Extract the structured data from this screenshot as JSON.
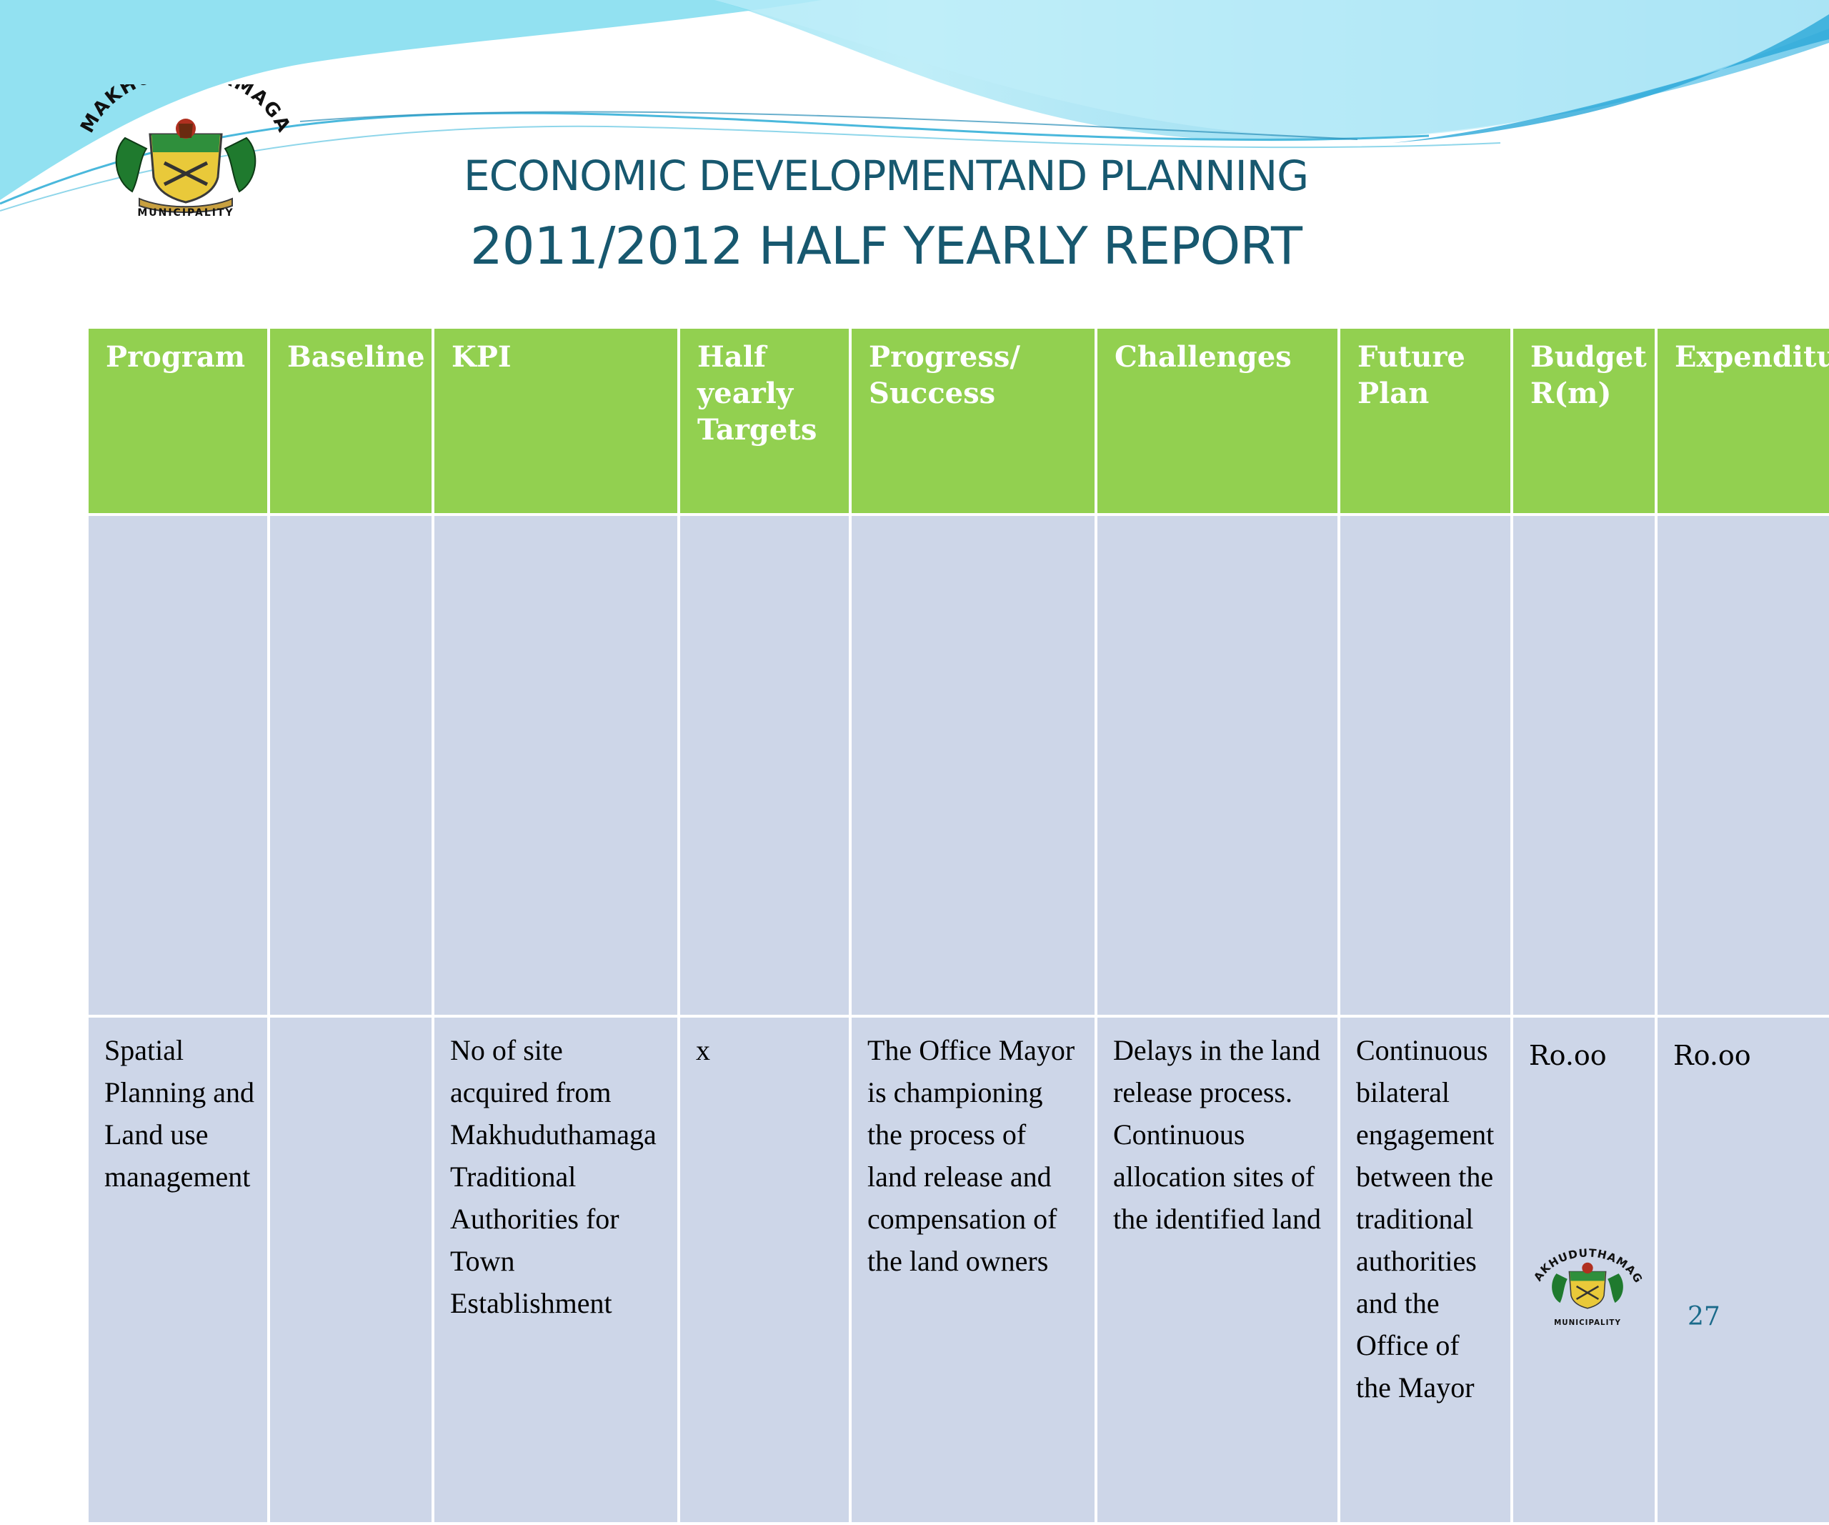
{
  "slide": {
    "title_line1": "ECONOMIC DEVELOPMENTAND PLANNING",
    "title_line2": "2011/2012 HALF YEARLY REPORT",
    "page_number": "27"
  },
  "logo": {
    "top_text": "MAKHUDUTHAMAGA",
    "bottom_text": "MUNICIPALITY"
  },
  "table": {
    "headers": [
      "Program",
      "Baseline",
      "KPI",
      "Half yearly Targets",
      "Progress/ Success",
      "Challenges",
      "Future Plan",
      "Budget R(m)",
      "Expenditure"
    ],
    "rows": [
      {
        "program": "Spatial Planning and Land use management",
        "baseline": "",
        "kpi": "No of site acquired from Makhuduthamaga Traditional Authorities for Town Establishment",
        "half_yearly_targets": "x",
        "progress_success": "The Office Mayor is championing the process of land release and compensation of the land owners",
        "challenges": "Delays in the land release process. Continuous allocation sites of the identified land",
        "future_plan": "Continuous bilateral engagement between the traditional authorities and the Office of the Mayor",
        "budget": "Ro.oo",
        "expenditure": "Ro.oo"
      }
    ]
  },
  "colors": {
    "title": "#17586f",
    "header_bg": "#92d050",
    "row_bg": "#cdd6e8",
    "wave_light": "#a8e4f3",
    "wave_dark": "#3fb6e0"
  }
}
